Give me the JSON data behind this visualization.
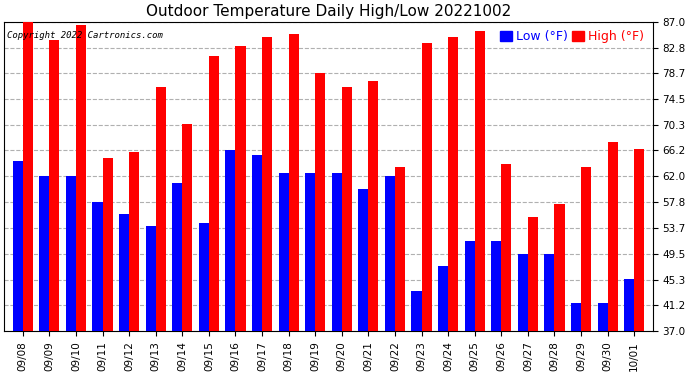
{
  "title": "Outdoor Temperature Daily High/Low 20221002",
  "copyright": "Copyright 2022 Cartronics.com",
  "legend_low": "Low",
  "legend_high": "High",
  "legend_unit": "(°F)",
  "dates": [
    "09/08",
    "09/09",
    "09/10",
    "09/11",
    "09/12",
    "09/13",
    "09/14",
    "09/15",
    "09/16",
    "09/17",
    "09/18",
    "09/19",
    "09/20",
    "09/21",
    "09/22",
    "09/23",
    "09/24",
    "09/25",
    "09/26",
    "09/27",
    "09/28",
    "09/29",
    "09/30",
    "10/01"
  ],
  "highs": [
    87.0,
    84.0,
    86.5,
    65.0,
    66.0,
    76.5,
    70.5,
    81.5,
    83.0,
    84.5,
    85.0,
    78.7,
    76.5,
    77.5,
    63.5,
    83.5,
    84.5,
    85.5,
    64.0,
    55.5,
    57.5,
    63.5,
    67.5,
    66.5
  ],
  "lows": [
    64.5,
    62.0,
    62.0,
    57.8,
    56.0,
    54.0,
    61.0,
    54.5,
    66.2,
    65.5,
    62.5,
    62.5,
    62.5,
    60.0,
    62.0,
    43.5,
    47.5,
    51.5,
    51.5,
    49.5,
    49.5,
    41.5,
    41.5,
    45.5
  ],
  "ylim_min": 37.0,
  "ylim_max": 87.0,
  "yticks": [
    37.0,
    41.2,
    45.3,
    49.5,
    53.7,
    57.8,
    62.0,
    66.2,
    70.3,
    74.5,
    78.7,
    82.8,
    87.0
  ],
  "high_color": "#ff0000",
  "low_color": "#0000ff",
  "background_color": "#ffffff",
  "grid_color": "#b0b0b0",
  "bar_width": 0.38,
  "title_fontsize": 11,
  "tick_fontsize": 7.5,
  "legend_fontsize": 9
}
